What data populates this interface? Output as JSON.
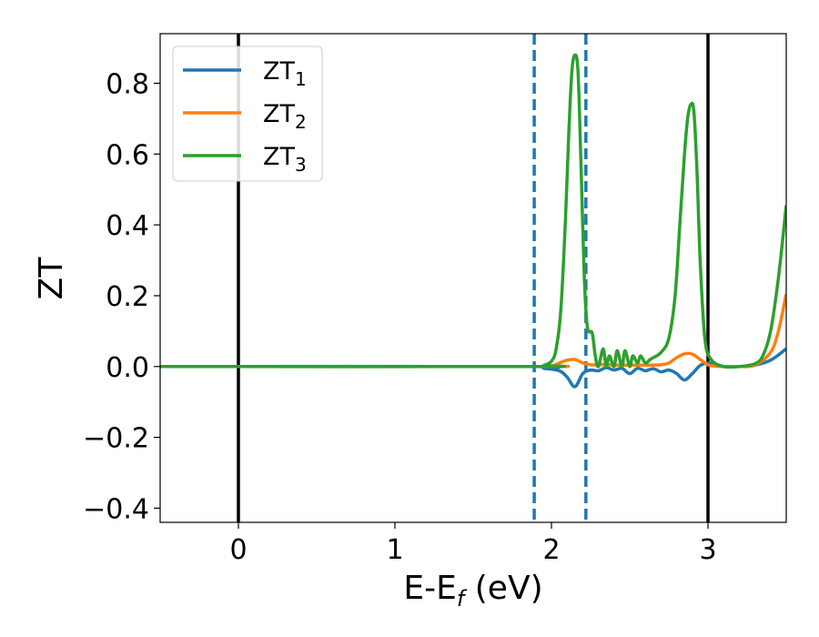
{
  "chart_data": {
    "type": "line",
    "xlabel": "E-E",
    "xlabel_sub": "f",
    "xlabel_unit": " (eV)",
    "ylabel": "ZT",
    "xlim": [
      -0.5,
      3.5
    ],
    "ylim": [
      -0.44,
      0.94
    ],
    "xticks": [
      0,
      1,
      2,
      3
    ],
    "xtick_labels": [
      "0",
      "1",
      "2",
      "3"
    ],
    "yticks": [
      -0.4,
      -0.2,
      0.0,
      0.2,
      0.4,
      0.6,
      0.8
    ],
    "ytick_labels": [
      "−0.4",
      "−0.2",
      "0.0",
      "0.2",
      "0.4",
      "0.6",
      "0.8"
    ],
    "grid": false,
    "legend_position": "top-left",
    "vertical_lines": [
      {
        "x": 0,
        "style": "solid",
        "color": "#000000"
      },
      {
        "x": 3,
        "style": "solid",
        "color": "#000000"
      },
      {
        "x": 1.89,
        "style": "dashed",
        "color": "#1f77b4"
      },
      {
        "x": 2.22,
        "style": "dashed",
        "color": "#1f77b4"
      }
    ],
    "series": [
      {
        "name": "ZT",
        "name_sub": "1",
        "color": "#1f77b4",
        "x": [
          -0.5,
          1.85,
          1.95,
          2.05,
          2.1,
          2.15,
          2.2,
          2.25,
          2.3,
          2.35,
          2.4,
          2.45,
          2.5,
          2.55,
          2.6,
          2.65,
          2.7,
          2.75,
          2.8,
          2.85,
          2.9,
          2.95,
          3.0,
          3.05,
          3.1,
          3.2,
          3.3,
          3.4,
          3.5
        ],
        "y": [
          0,
          0,
          -0.005,
          -0.012,
          -0.03,
          -0.057,
          -0.02,
          -0.01,
          -0.012,
          -0.003,
          -0.01,
          -0.005,
          -0.02,
          -0.005,
          -0.012,
          -0.006,
          -0.015,
          -0.01,
          -0.02,
          -0.038,
          -0.02,
          0.003,
          0.01,
          0.005,
          0.0,
          0.0,
          0.004,
          0.018,
          0.05
        ]
      },
      {
        "name": "ZT",
        "name_sub": "2",
        "color": "#ff7f0e",
        "x": [
          -0.5,
          1.9,
          2.0,
          2.05,
          2.1,
          2.15,
          2.2,
          2.25,
          2.3,
          2.35,
          2.4,
          2.5,
          2.6,
          2.7,
          2.75,
          2.8,
          2.85,
          2.9,
          2.95,
          3.0,
          3.05,
          3.1,
          3.2,
          3.3,
          3.4,
          3.45,
          3.5
        ],
        "y": [
          0,
          0,
          0.002,
          0.01,
          0.018,
          0.02,
          0.01,
          0.005,
          0.005,
          0.006,
          0.004,
          0.004,
          0.004,
          0.005,
          0.01,
          0.025,
          0.036,
          0.035,
          0.02,
          0.005,
          0.001,
          0.0,
          0.0,
          0.004,
          0.04,
          0.1,
          0.205
        ]
      },
      {
        "name": "ZT",
        "name_sub": "3",
        "color": "#2ca02c",
        "x": [
          -0.5,
          1.89,
          1.95,
          2.0,
          2.03,
          2.06,
          2.09,
          2.11,
          2.13,
          2.15,
          2.17,
          2.19,
          2.21,
          2.23,
          2.26,
          2.28,
          2.3,
          2.33,
          2.35,
          2.37,
          2.4,
          2.42,
          2.45,
          2.47,
          2.5,
          2.52,
          2.55,
          2.57,
          2.6,
          2.63,
          2.65,
          2.7,
          2.75,
          2.79,
          2.82,
          2.85,
          2.87,
          2.89,
          2.91,
          2.93,
          2.95,
          2.98,
          3.02,
          3.1,
          3.2,
          3.3,
          3.35,
          3.4,
          3.45,
          3.5
        ],
        "y": [
          0,
          0,
          0.003,
          0.015,
          0.05,
          0.16,
          0.42,
          0.65,
          0.83,
          0.88,
          0.83,
          0.55,
          0.25,
          0.11,
          0.095,
          0.03,
          0.0,
          0.05,
          0.0,
          0.03,
          0.0,
          0.045,
          0.0,
          0.045,
          0.0,
          0.03,
          0.01,
          0.03,
          0.01,
          0.02,
          0.025,
          0.04,
          0.08,
          0.2,
          0.4,
          0.6,
          0.7,
          0.74,
          0.72,
          0.55,
          0.3,
          0.08,
          0.02,
          0.0,
          0.0,
          0.008,
          0.03,
          0.1,
          0.25,
          0.455
        ]
      }
    ]
  }
}
